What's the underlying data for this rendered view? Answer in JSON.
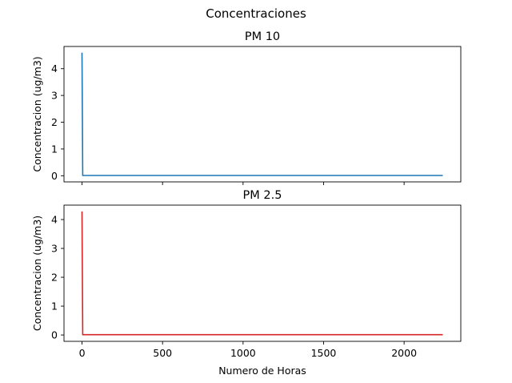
{
  "figure": {
    "suptitle": "Concentraciones"
  },
  "chart_data": [
    {
      "type": "line",
      "title": "PM 10",
      "xlabel": "",
      "ylabel": "Concentracion (ug/m3)",
      "xlim": [
        -112,
        2352
      ],
      "ylim": [
        -0.23,
        4.83
      ],
      "xticks": [
        0,
        500,
        1000,
        1500,
        2000
      ],
      "xtick_labels_shown": false,
      "yticks": [
        0,
        1,
        2,
        3,
        4
      ],
      "grid": false,
      "series": [
        {
          "color": "#1f77b4",
          "x": [
            0,
            4,
            2240
          ],
          "y": [
            4.6,
            0.01,
            0.01
          ]
        }
      ]
    },
    {
      "type": "line",
      "title": "PM 2.5",
      "xlabel": "Numero de Horas",
      "ylabel": "Concentracion (ug/m3)",
      "xlim": [
        -112,
        2352
      ],
      "ylim": [
        -0.22,
        4.5
      ],
      "xticks": [
        0,
        500,
        1000,
        1500,
        2000
      ],
      "xtick_labels_shown": true,
      "yticks": [
        0,
        1,
        2,
        3,
        4
      ],
      "grid": false,
      "series": [
        {
          "color": "#d62728",
          "x": [
            0,
            4,
            2240
          ],
          "y": [
            4.28,
            0.01,
            0.01
          ]
        }
      ]
    }
  ]
}
